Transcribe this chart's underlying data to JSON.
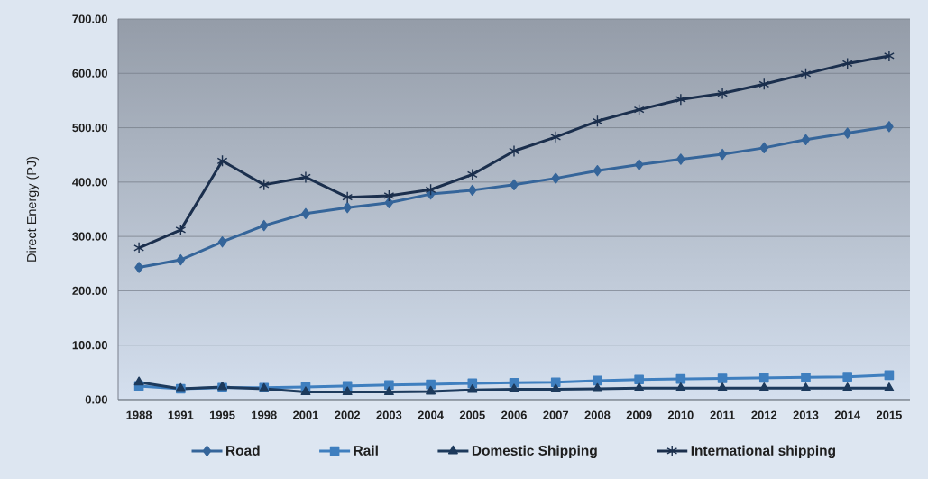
{
  "chart_data": {
    "type": "line",
    "ylabel": "Direct Energy (PJ)",
    "categories": [
      "1988",
      "1991",
      "1995",
      "1998",
      "2001",
      "2002",
      "2003",
      "2004",
      "2005",
      "2006",
      "2007",
      "2008",
      "2009",
      "2010",
      "2011",
      "2012",
      "2013",
      "2014",
      "2015"
    ],
    "series": [
      {
        "name": "Road",
        "color": "#35659a",
        "marker": "diamond",
        "values": [
          243,
          257,
          290,
          320,
          342,
          353,
          362,
          378,
          385,
          395,
          407,
          421,
          432,
          442,
          451,
          463,
          478,
          490,
          502
        ]
      },
      {
        "name": "Rail",
        "color": "#3f7fbf",
        "marker": "square",
        "values": [
          25,
          20,
          22,
          22,
          23,
          25,
          27,
          28,
          30,
          31,
          32,
          35,
          37,
          38,
          39,
          40,
          41,
          42,
          45
        ]
      },
      {
        "name": "Domestic Shipping",
        "color": "#1d3a5c",
        "marker": "triangle",
        "values": [
          32,
          20,
          23,
          20,
          14,
          14,
          14,
          15,
          18,
          19,
          19,
          20,
          21,
          21,
          21,
          21,
          21,
          21,
          21
        ]
      },
      {
        "name": "International shipping",
        "color": "#1b2f4d",
        "marker": "cross",
        "values": [
          279,
          312,
          439,
          395,
          409,
          372,
          375,
          386,
          414,
          457,
          483,
          512,
          533,
          552,
          563,
          580,
          599,
          618,
          632
        ]
      }
    ],
    "ylim": [
      0,
      700
    ],
    "yticks": [
      {
        "value": 0,
        "label": "0.00"
      },
      {
        "value": 100,
        "label": "100.00"
      },
      {
        "value": 200,
        "label": "200.00"
      },
      {
        "value": 300,
        "label": "300.00"
      },
      {
        "value": 400,
        "label": "400.00"
      },
      {
        "value": 500,
        "label": "500.00"
      },
      {
        "value": 600,
        "label": "600.00"
      },
      {
        "value": 700,
        "label": "700.00"
      }
    ],
    "grid": "y",
    "legend": "bottom",
    "line_style": "solid"
  }
}
